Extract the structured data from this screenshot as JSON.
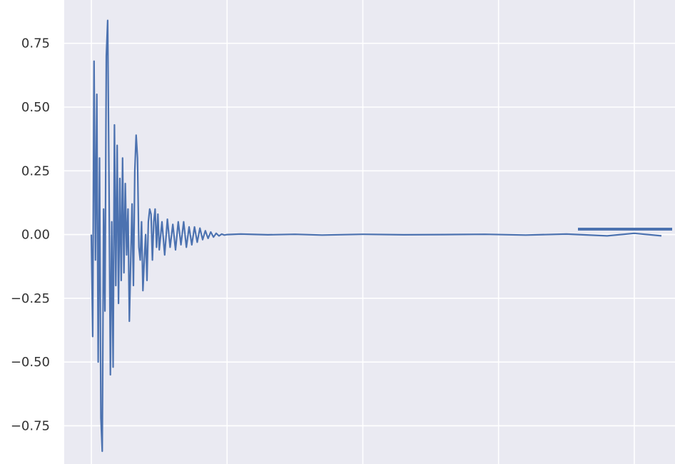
{
  "chart_data": {
    "type": "line",
    "title": "",
    "xlabel": "",
    "ylabel": "",
    "xlim": [
      -0.2,
      4.3
    ],
    "ylim": [
      -0.9,
      0.92
    ],
    "x_gridlines": [
      0,
      1,
      2,
      3,
      4
    ],
    "y_ticks": [
      0.75,
      0.5,
      0.25,
      0.0,
      -0.25,
      -0.5,
      -0.75
    ],
    "y_tick_labels": [
      "0.75",
      "0.50",
      "0.25",
      "0.00",
      "−0.25",
      "−0.50",
      "−0.75"
    ],
    "grid": true,
    "legend": "none",
    "colors": {
      "background": "#eaeaf2",
      "grid": "#ffffff",
      "line": "#4c72b0"
    },
    "series": [
      {
        "x": [
          0.0,
          0.01,
          0.02,
          0.03,
          0.04,
          0.05,
          0.06,
          0.07,
          0.08,
          0.09,
          0.1,
          0.11,
          0.12,
          0.13,
          0.14,
          0.15,
          0.16,
          0.17,
          0.18,
          0.19,
          0.2,
          0.21,
          0.22,
          0.23,
          0.24,
          0.25,
          0.26,
          0.27,
          0.28,
          0.29,
          0.3,
          0.31,
          0.32,
          0.33,
          0.34,
          0.35,
          0.36,
          0.37,
          0.38,
          0.39,
          0.4,
          0.41,
          0.42,
          0.43,
          0.44,
          0.45,
          0.46,
          0.47,
          0.48,
          0.49,
          0.5,
          0.52,
          0.54,
          0.56,
          0.58,
          0.6,
          0.62,
          0.64,
          0.66,
          0.68,
          0.7,
          0.72,
          0.74,
          0.76,
          0.78,
          0.8,
          0.82,
          0.84,
          0.86,
          0.88,
          0.9,
          0.92,
          0.94,
          0.96,
          0.98,
          1.0,
          1.1,
          1.3,
          1.5,
          1.7,
          2.0,
          2.3,
          2.6,
          2.9,
          3.2,
          3.5,
          3.8,
          4.0,
          4.2
        ],
        "y": [
          0.0,
          -0.4,
          0.68,
          -0.1,
          0.55,
          -0.5,
          0.3,
          -0.72,
          -0.85,
          0.1,
          -0.3,
          0.7,
          0.84,
          0.2,
          -0.55,
          0.05,
          -0.52,
          0.43,
          -0.2,
          0.35,
          -0.27,
          0.22,
          -0.18,
          0.3,
          -0.15,
          0.2,
          -0.08,
          0.1,
          -0.34,
          -0.1,
          0.12,
          -0.2,
          0.25,
          0.39,
          0.3,
          -0.05,
          -0.1,
          0.05,
          -0.22,
          -0.1,
          0.0,
          -0.18,
          0.05,
          0.1,
          0.08,
          -0.1,
          0.05,
          0.1,
          -0.05,
          0.08,
          -0.06,
          0.05,
          -0.08,
          0.06,
          -0.05,
          0.04,
          -0.06,
          0.05,
          -0.04,
          0.05,
          -0.05,
          0.03,
          -0.04,
          0.03,
          -0.03,
          0.025,
          -0.02,
          0.015,
          -0.015,
          0.01,
          -0.01,
          0.005,
          -0.005,
          0.002,
          -0.002,
          0.0,
          0.002,
          -0.001,
          0.001,
          -0.002,
          0.001,
          -0.001,
          0.0,
          0.001,
          -0.002,
          0.002,
          -0.005,
          0.005,
          -0.005
        ]
      }
    ]
  }
}
